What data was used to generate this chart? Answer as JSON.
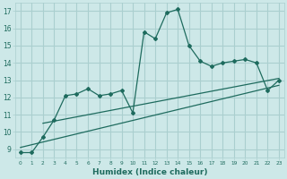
{
  "title": "",
  "xlabel": "Humidex (Indice chaleur)",
  "ylabel": "",
  "bg_color": "#cde8e8",
  "line_color": "#1e6b5e",
  "grid_color": "#aacfcf",
  "xlim": [
    -0.5,
    23.5
  ],
  "ylim": [
    8.5,
    17.5
  ],
  "yticks": [
    9,
    10,
    11,
    12,
    13,
    14,
    15,
    16,
    17
  ],
  "xticks": [
    0,
    1,
    2,
    3,
    4,
    5,
    6,
    7,
    8,
    9,
    10,
    11,
    12,
    13,
    14,
    15,
    16,
    17,
    18,
    19,
    20,
    21,
    22,
    23
  ],
  "main_x": [
    0,
    1,
    2,
    3,
    4,
    5,
    6,
    7,
    8,
    9,
    10,
    11,
    12,
    13,
    14,
    15,
    16,
    17,
    18,
    19,
    20,
    21,
    22,
    23
  ],
  "main_y": [
    8.8,
    8.8,
    9.7,
    10.7,
    12.1,
    12.2,
    12.5,
    12.1,
    12.2,
    12.4,
    11.1,
    15.8,
    15.4,
    16.9,
    17.1,
    15.0,
    14.1,
    13.8,
    14.0,
    14.1,
    14.2,
    14.0,
    12.4,
    13.0
  ],
  "trend1_x": [
    0,
    23
  ],
  "trend1_y": [
    9.1,
    12.7
  ],
  "trend2_x": [
    2,
    23
  ],
  "trend2_y": [
    10.5,
    13.1
  ]
}
